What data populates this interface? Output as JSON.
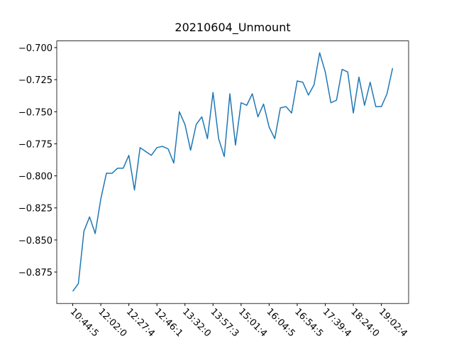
{
  "chart_data": {
    "type": "line",
    "title": "20210604_Unmount",
    "categories": [
      "10:44:5",
      null,
      null,
      null,
      null,
      "12:02:0",
      null,
      null,
      null,
      null,
      "12:27:4",
      null,
      null,
      null,
      null,
      "12:46:1",
      null,
      null,
      null,
      null,
      "13:32:0",
      null,
      null,
      null,
      null,
      "13:57:3",
      null,
      null,
      null,
      null,
      "15:01:4",
      null,
      null,
      null,
      null,
      "16:04:5",
      null,
      null,
      null,
      null,
      "16:54:5",
      null,
      null,
      null,
      null,
      "17:39:4",
      null,
      null,
      null,
      null,
      "18:24:0",
      null,
      null,
      null,
      null,
      "19:02:4",
      null,
      null
    ],
    "series": [
      {
        "name": "Unmount",
        "color": "#1f77b4",
        "values": [
          -0.89,
          -0.884,
          -0.843,
          -0.832,
          -0.845,
          -0.818,
          -0.798,
          -0.798,
          -0.794,
          -0.794,
          -0.784,
          -0.811,
          -0.778,
          -0.781,
          -0.784,
          -0.778,
          -0.777,
          -0.779,
          -0.79,
          -0.75,
          -0.76,
          -0.78,
          -0.76,
          -0.754,
          -0.771,
          -0.735,
          -0.771,
          -0.785,
          -0.736,
          -0.776,
          -0.743,
          -0.745,
          -0.736,
          -0.754,
          -0.744,
          -0.762,
          -0.771,
          -0.747,
          -0.746,
          -0.751,
          -0.726,
          -0.727,
          -0.737,
          -0.729,
          -0.704,
          -0.719,
          -0.743,
          -0.741,
          -0.717,
          -0.719,
          -0.751,
          -0.723,
          -0.745,
          -0.727,
          -0.746,
          -0.746,
          -0.736,
          -0.716
        ]
      }
    ],
    "ylim": [
      -0.8995,
      -0.6948
    ],
    "yticks": [
      {
        "value": -0.875,
        "label": "−0.875"
      },
      {
        "value": -0.85,
        "label": "−0.850"
      },
      {
        "value": -0.825,
        "label": "−0.825"
      },
      {
        "value": -0.8,
        "label": "−0.800"
      },
      {
        "value": -0.775,
        "label": "−0.775"
      },
      {
        "value": -0.75,
        "label": "−0.750"
      },
      {
        "value": -0.725,
        "label": "−0.725"
      },
      {
        "value": -0.7,
        "label": "−0.700"
      }
    ],
    "grid": false
  }
}
